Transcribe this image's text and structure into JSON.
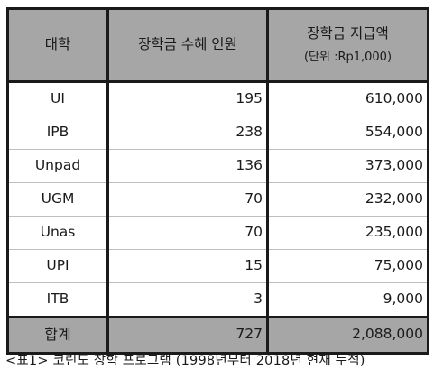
{
  "table": {
    "headers": {
      "university": "대학",
      "recipients": "장학금 수혜 인원",
      "amount": "장학금 지급액",
      "amount_unit": "(단위 :Rp1,000)"
    },
    "rows": [
      {
        "university": "UI",
        "recipients": "195",
        "amount": "610,000"
      },
      {
        "university": "IPB",
        "recipients": "238",
        "amount": "554,000"
      },
      {
        "university": "Unpad",
        "recipients": "136",
        "amount": "373,000"
      },
      {
        "university": "UGM",
        "recipients": "70",
        "amount": "232,000"
      },
      {
        "university": "Unas",
        "recipients": "70",
        "amount": "235,000"
      },
      {
        "university": "UPI",
        "recipients": "15",
        "amount": "75,000"
      },
      {
        "university": "ITB",
        "recipients": "3",
        "amount": "9,000"
      }
    ],
    "total": {
      "label": "합계",
      "recipients": "727",
      "amount": "2,088,000"
    }
  },
  "caption": "<표1> 코린도 장학 프로그램 (1998년부터 2018년 현재 누적)"
}
